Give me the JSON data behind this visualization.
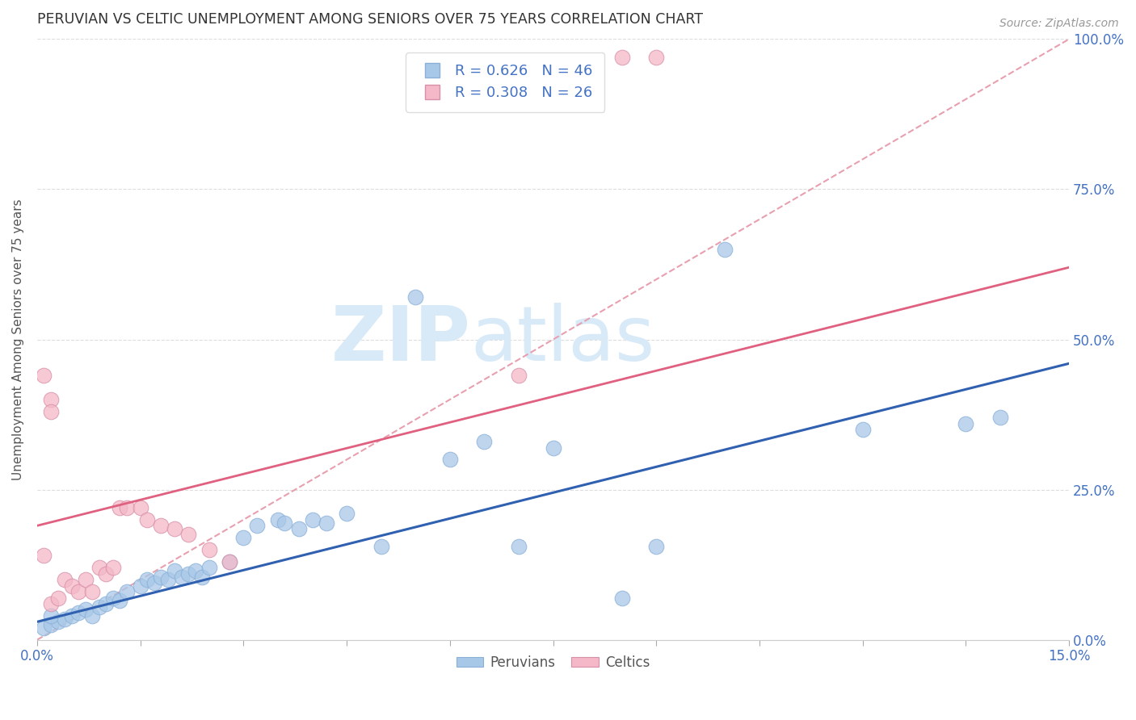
{
  "title": "PERUVIAN VS CELTIC UNEMPLOYMENT AMONG SENIORS OVER 75 YEARS CORRELATION CHART",
  "source": "Source: ZipAtlas.com",
  "ylabel": "Unemployment Among Seniors over 75 years",
  "xlim": [
    0.0,
    0.15
  ],
  "ylim": [
    0.0,
    1.0
  ],
  "xticks": [
    0.0,
    0.015,
    0.03,
    0.045,
    0.06,
    0.075,
    0.09,
    0.105,
    0.12,
    0.135,
    0.15
  ],
  "yticks": [
    0.0,
    0.25,
    0.5,
    0.75,
    1.0
  ],
  "right_ytick_labels": [
    "0.0%",
    "25.0%",
    "50.0%",
    "75.0%",
    "100.0%"
  ],
  "peruvian_color": "#a8c8e8",
  "celtic_color": "#f4b8c8",
  "peruvian_R": 0.626,
  "peruvian_N": 46,
  "celtic_R": 0.308,
  "celtic_N": 26,
  "diagonal_color": "#e8a0b0",
  "peruvian_line_color": "#3060b0",
  "celtic_line_color": "#e06080",
  "watermark_color": "#d8eaf8",
  "peruvian_scatter": [
    [
      0.001,
      0.02
    ],
    [
      0.002,
      0.025
    ],
    [
      0.003,
      0.03
    ],
    [
      0.002,
      0.04
    ],
    [
      0.004,
      0.035
    ],
    [
      0.005,
      0.04
    ],
    [
      0.006,
      0.045
    ],
    [
      0.007,
      0.05
    ],
    [
      0.008,
      0.04
    ],
    [
      0.009,
      0.055
    ],
    [
      0.01,
      0.06
    ],
    [
      0.011,
      0.07
    ],
    [
      0.012,
      0.065
    ],
    [
      0.013,
      0.08
    ],
    [
      0.015,
      0.09
    ],
    [
      0.016,
      0.1
    ],
    [
      0.017,
      0.095
    ],
    [
      0.018,
      0.105
    ],
    [
      0.019,
      0.1
    ],
    [
      0.02,
      0.115
    ],
    [
      0.021,
      0.105
    ],
    [
      0.022,
      0.11
    ],
    [
      0.023,
      0.115
    ],
    [
      0.024,
      0.105
    ],
    [
      0.025,
      0.12
    ],
    [
      0.028,
      0.13
    ],
    [
      0.03,
      0.17
    ],
    [
      0.032,
      0.19
    ],
    [
      0.035,
      0.2
    ],
    [
      0.036,
      0.195
    ],
    [
      0.038,
      0.185
    ],
    [
      0.04,
      0.2
    ],
    [
      0.042,
      0.195
    ],
    [
      0.045,
      0.21
    ],
    [
      0.05,
      0.155
    ],
    [
      0.055,
      0.57
    ],
    [
      0.06,
      0.3
    ],
    [
      0.065,
      0.33
    ],
    [
      0.07,
      0.155
    ],
    [
      0.075,
      0.32
    ],
    [
      0.085,
      0.07
    ],
    [
      0.09,
      0.155
    ],
    [
      0.1,
      0.65
    ],
    [
      0.12,
      0.35
    ],
    [
      0.135,
      0.36
    ],
    [
      0.14,
      0.37
    ]
  ],
  "celtic_scatter": [
    [
      0.001,
      0.14
    ],
    [
      0.002,
      0.06
    ],
    [
      0.003,
      0.07
    ],
    [
      0.004,
      0.1
    ],
    [
      0.005,
      0.09
    ],
    [
      0.006,
      0.08
    ],
    [
      0.007,
      0.1
    ],
    [
      0.008,
      0.08
    ],
    [
      0.009,
      0.12
    ],
    [
      0.01,
      0.11
    ],
    [
      0.011,
      0.12
    ],
    [
      0.012,
      0.22
    ],
    [
      0.013,
      0.22
    ],
    [
      0.015,
      0.22
    ],
    [
      0.016,
      0.2
    ],
    [
      0.018,
      0.19
    ],
    [
      0.02,
      0.185
    ],
    [
      0.022,
      0.175
    ],
    [
      0.025,
      0.15
    ],
    [
      0.028,
      0.13
    ],
    [
      0.001,
      0.44
    ],
    [
      0.002,
      0.4
    ],
    [
      0.002,
      0.38
    ],
    [
      0.07,
      0.44
    ],
    [
      0.085,
      0.97
    ],
    [
      0.09,
      0.97
    ]
  ],
  "peruvian_line": [
    [
      0.0,
      0.03
    ],
    [
      0.15,
      0.46
    ]
  ],
  "celtic_line": [
    [
      0.0,
      0.19
    ],
    [
      0.15,
      0.62
    ]
  ],
  "diagonal_line": [
    [
      0.0,
      0.0
    ],
    [
      0.15,
      1.0
    ]
  ]
}
